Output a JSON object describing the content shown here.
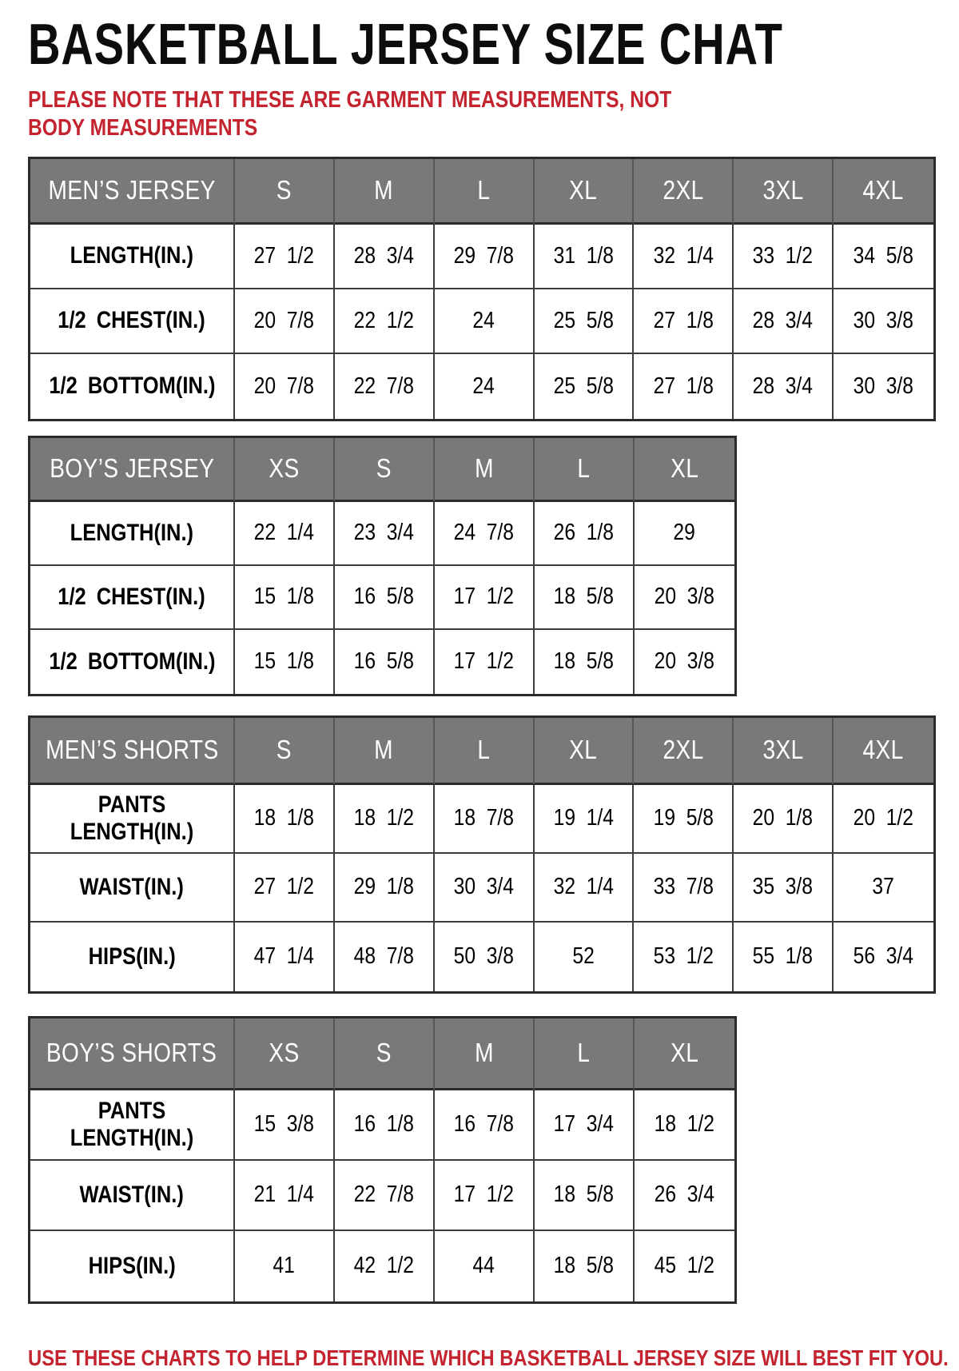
{
  "page": {
    "title": "BASKETBALL JERSEY SIZE CHAT",
    "note": "PLEASE NOTE THAT THESE ARE GARMENT MEASUREMENTS, NOT BODY MEASUREMENTS",
    "footer": "USE THESE CHARTS TO HELP DETERMINE WHICH BASKETBALL JERSEY SIZE WILL BEST FIT YOU.",
    "colors": {
      "header_bg": "#797979",
      "header_text": "#ffffff",
      "accent_red": "#c32430",
      "border": "#2b2b2b"
    }
  },
  "tables": [
    {
      "header": [
        "MEN’S JERSEY",
        "S",
        "M",
        "L",
        "XL",
        "2XL",
        "3XL",
        "4XL"
      ],
      "rows": [
        {
          "label": "LENGTH(IN.)",
          "values": [
            "27 1/2",
            "28 3/4",
            "29 7/8",
            "31 1/8",
            "32 1/4",
            "33 1/2",
            "34 5/8"
          ]
        },
        {
          "label": "1/2 CHEST(IN.)",
          "values": [
            "20 7/8",
            "22 1/2",
            "24",
            "25 5/8",
            "27 1/8",
            "28 3/4",
            "30 3/8"
          ]
        },
        {
          "label": "1/2 BOTTOM(IN.)",
          "values": [
            "20 7/8",
            "22 7/8",
            "24",
            "25 5/8",
            "27 1/8",
            "28 3/4",
            "30 3/8"
          ]
        }
      ]
    },
    {
      "header": [
        "BOY’S JERSEY",
        "XS",
        "S",
        "M",
        "L",
        "XL"
      ],
      "rows": [
        {
          "label": "LENGTH(IN.)",
          "values": [
            "22 1/4",
            "23 3/4",
            "24 7/8",
            "26 1/8",
            "29"
          ]
        },
        {
          "label": "1/2 CHEST(IN.)",
          "values": [
            "15 1/8",
            "16 5/8",
            "17 1/2",
            "18 5/8",
            "20 3/8"
          ]
        },
        {
          "label": "1/2 BOTTOM(IN.)",
          "values": [
            "15 1/8",
            "16 5/8",
            "17 1/2",
            "18 5/8",
            "20 3/8"
          ]
        }
      ]
    },
    {
      "header": [
        "MEN’S SHORTS",
        "S",
        "M",
        "L",
        "XL",
        "2XL",
        "3XL",
        "4XL"
      ],
      "rows": [
        {
          "label": "PANTS LENGTH(IN.)",
          "values": [
            "18 1/8",
            "18 1/2",
            "18 7/8",
            "19 1/4",
            "19 5/8",
            "20 1/8",
            "20 1/2"
          ]
        },
        {
          "label": "WAIST(IN.)",
          "values": [
            "27 1/2",
            "29 1/8",
            "30 3/4",
            "32 1/4",
            "33 7/8",
            "35 3/8",
            "37"
          ]
        },
        {
          "label": "HIPS(IN.)",
          "values": [
            "47 1/4",
            "48 7/8",
            "50 3/8",
            "52",
            "53 1/2",
            "55 1/8",
            "56 3/4"
          ]
        }
      ]
    },
    {
      "header": [
        "BOY’S SHORTS",
        "XS",
        "S",
        "M",
        "L",
        "XL"
      ],
      "rows": [
        {
          "label": "PANTS LENGTH(IN.)",
          "values": [
            "15 3/8",
            "16 1/8",
            "16 7/8",
            "17 3/4",
            "18 1/2"
          ]
        },
        {
          "label": "WAIST(IN.)",
          "values": [
            "21 1/4",
            "22 7/8",
            "17 1/2",
            "18 5/8",
            "26 3/4"
          ]
        },
        {
          "label": "HIPS(IN.)",
          "values": [
            "41",
            "42 1/2",
            "44",
            "18 5/8",
            "45 1/2"
          ]
        }
      ]
    }
  ]
}
